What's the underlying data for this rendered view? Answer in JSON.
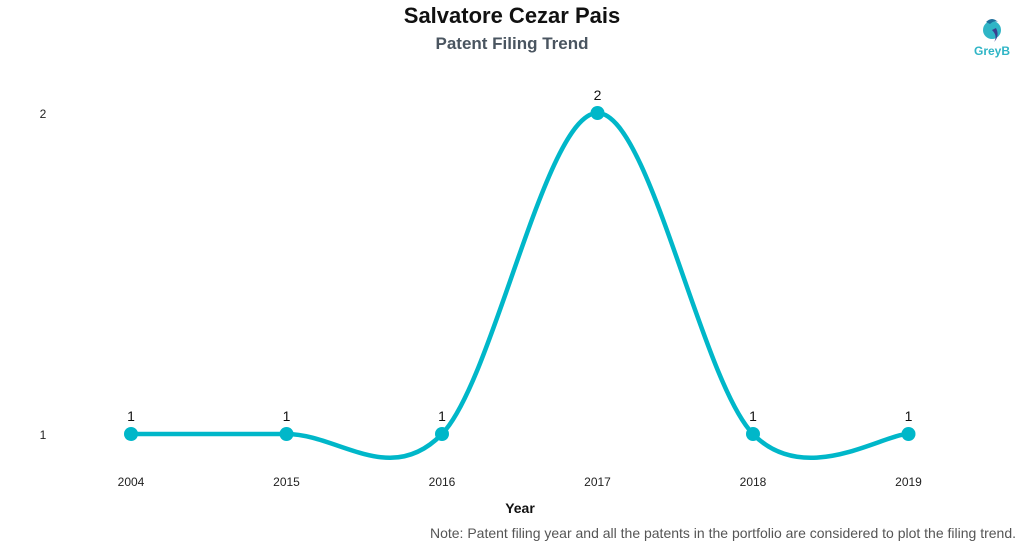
{
  "header": {
    "title": "Salvatore Cezar Pais",
    "subtitle": "Patent Filing Trend",
    "logo_text": "GreyB"
  },
  "note": "Note: Patent filing year and all the patents in the portfolio are considered to plot the filing trend.",
  "colors": {
    "line": "#00b7c9",
    "logo": "#2fb5c6"
  },
  "chart_data": {
    "type": "line",
    "title": "Salvatore Cezar Pais",
    "subtitle": "Patent Filing Trend",
    "xlabel": "Year",
    "ylabel": "",
    "categories": [
      "2004",
      "2015",
      "2016",
      "2017",
      "2018",
      "2019"
    ],
    "values": [
      1,
      1,
      1,
      2,
      1,
      1
    ],
    "yticks": [
      1,
      2
    ],
    "ylim": [
      1,
      2
    ],
    "grid": false,
    "legend": "none",
    "smooth": true
  }
}
